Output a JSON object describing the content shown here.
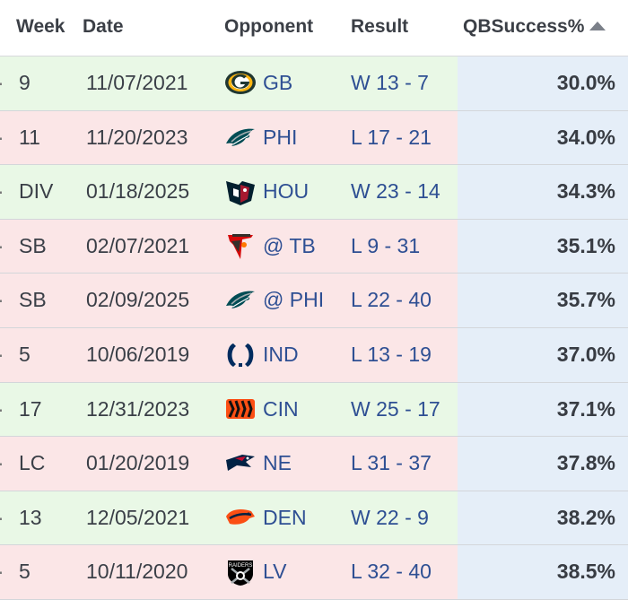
{
  "columns": {
    "week": "Week",
    "date": "Date",
    "opponent": "Opponent",
    "result": "Result",
    "qb_success": "QBSuccess%"
  },
  "sort": {
    "column": "qb_success",
    "direction": "ascending"
  },
  "colors": {
    "win_row": "#e9f8e6",
    "loss_row": "#fbe6e7",
    "highlight_col": "#e5eef8",
    "link": "#2e4f93"
  },
  "rows": [
    {
      "week": "9",
      "date": "11/07/2021",
      "opponent": "GB",
      "logo": "packers-logo",
      "result": "W 13 - 7",
      "outcome": "win",
      "qb_success": "30.0%"
    },
    {
      "week": "11",
      "date": "11/20/2023",
      "opponent": "PHI",
      "logo": "eagles-logo",
      "result": "L 17 - 21",
      "outcome": "loss",
      "qb_success": "34.0%"
    },
    {
      "week": "DIV",
      "date": "01/18/2025",
      "opponent": "HOU",
      "logo": "texans-logo",
      "result": "W 23 - 14",
      "outcome": "win",
      "qb_success": "34.3%"
    },
    {
      "week": "SB",
      "date": "02/07/2021",
      "opponent": "@ TB",
      "logo": "buccaneers-logo",
      "result": "L 9 - 31",
      "outcome": "loss",
      "qb_success": "35.1%"
    },
    {
      "week": "SB",
      "date": "02/09/2025",
      "opponent": "@ PHI",
      "logo": "eagles-logo",
      "result": "L 22 - 40",
      "outcome": "loss",
      "qb_success": "35.7%"
    },
    {
      "week": "5",
      "date": "10/06/2019",
      "opponent": "IND",
      "logo": "colts-logo",
      "result": "L 13 - 19",
      "outcome": "loss",
      "qb_success": "37.0%"
    },
    {
      "week": "17",
      "date": "12/31/2023",
      "opponent": "CIN",
      "logo": "bengals-logo",
      "result": "W 25 - 17",
      "outcome": "win",
      "qb_success": "37.1%"
    },
    {
      "week": "LC",
      "date": "01/20/2019",
      "opponent": "NE",
      "logo": "patriots-logo",
      "result": "L 31 - 37",
      "outcome": "loss",
      "qb_success": "37.8%"
    },
    {
      "week": "13",
      "date": "12/05/2021",
      "opponent": "DEN",
      "logo": "broncos-logo",
      "result": "W 22 - 9",
      "outcome": "win",
      "qb_success": "38.2%"
    },
    {
      "week": "5",
      "date": "10/11/2020",
      "opponent": "LV",
      "logo": "raiders-logo",
      "result": "L 32 - 40",
      "outcome": "loss",
      "qb_success": "38.5%"
    }
  ]
}
